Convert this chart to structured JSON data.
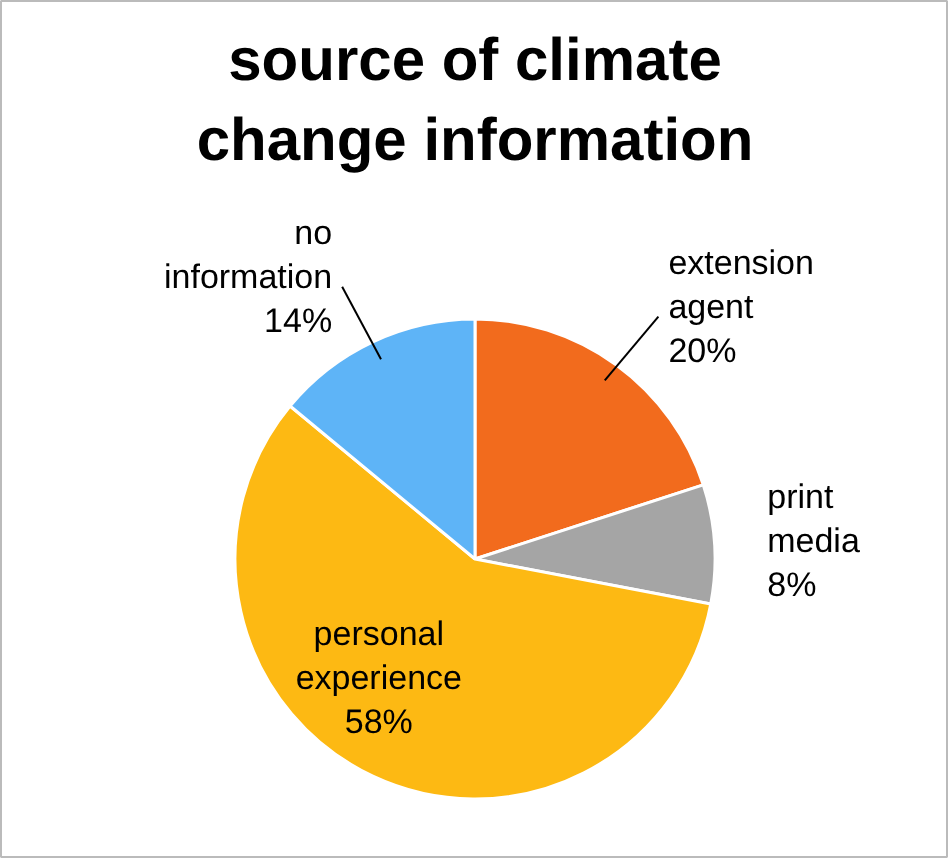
{
  "chart_data": {
    "type": "pie",
    "title": "source of climate change information",
    "categories": [
      "extension agent",
      "print media",
      "personal experience",
      "no information"
    ],
    "values": [
      20,
      8,
      58,
      14
    ],
    "colors": [
      "#f26b1d",
      "#a5a5a5",
      "#fdb913",
      "#5eb4f7"
    ],
    "value_labels": [
      "20%",
      "8%",
      "58%",
      "14%"
    ]
  }
}
